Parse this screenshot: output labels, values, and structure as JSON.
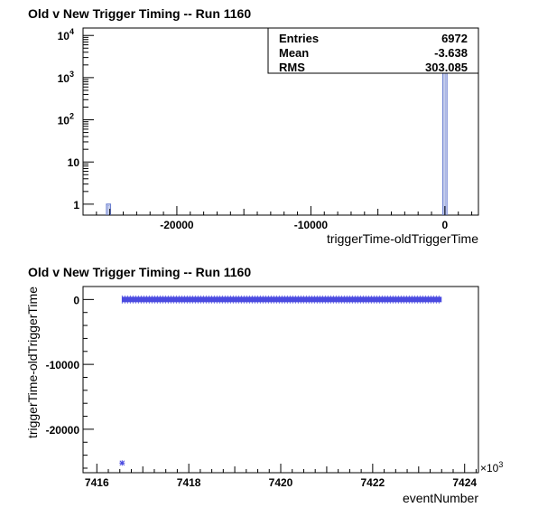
{
  "chart_data": [
    {
      "type": "bar",
      "title": "Old v New Trigger Timing -- Run 1160",
      "xlabel": "triggerTime-oldTriggerTime",
      "ylabel": "",
      "log_y": true,
      "xlim": [
        -27000,
        2500
      ],
      "ylim": [
        0.55,
        15000
      ],
      "x_ticks": [
        -20000,
        -10000,
        0
      ],
      "y_ticks": [
        {
          "value": 1,
          "label": "1"
        },
        {
          "value": 10,
          "label": "10"
        },
        {
          "value": 100,
          "label": "10",
          "exp": "2"
        },
        {
          "value": 1000,
          "label": "10",
          "exp": "3"
        },
        {
          "value": 10000,
          "label": "10",
          "exp": "4"
        }
      ],
      "bins": [
        {
          "x_low": -25250,
          "x_high": -24950,
          "count": 1
        },
        {
          "x_low": -150,
          "x_high": 150,
          "count": 6971
        }
      ],
      "color": "#6a7fd0",
      "stats": {
        "rows": [
          {
            "label": "Entries",
            "value": "6972"
          },
          {
            "label": "Mean",
            "value": "-3.638"
          },
          {
            "label": "RMS",
            "value": "303.085"
          }
        ]
      }
    },
    {
      "type": "scatter",
      "title": "Old v New Trigger Timing -- Run 1160",
      "xlabel": "eventNumber",
      "ylabel": "triggerTime-oldTriggerTime",
      "xlim": [
        7415.7,
        7424.3
      ],
      "ylim": [
        -26700,
        2000
      ],
      "x_ticks": [
        7416,
        7418,
        7420,
        7422,
        7424
      ],
      "y_ticks": [
        -20000,
        -10000,
        0
      ],
      "x_exponent_label": "×10",
      "x_exponent_power": "3",
      "band": {
        "x_start": 7416.55,
        "x_end": 7423.5,
        "y": 0
      },
      "outliers": [
        {
          "x": 7416.55,
          "y": -25200
        }
      ],
      "color": "#4a4ae0"
    }
  ]
}
